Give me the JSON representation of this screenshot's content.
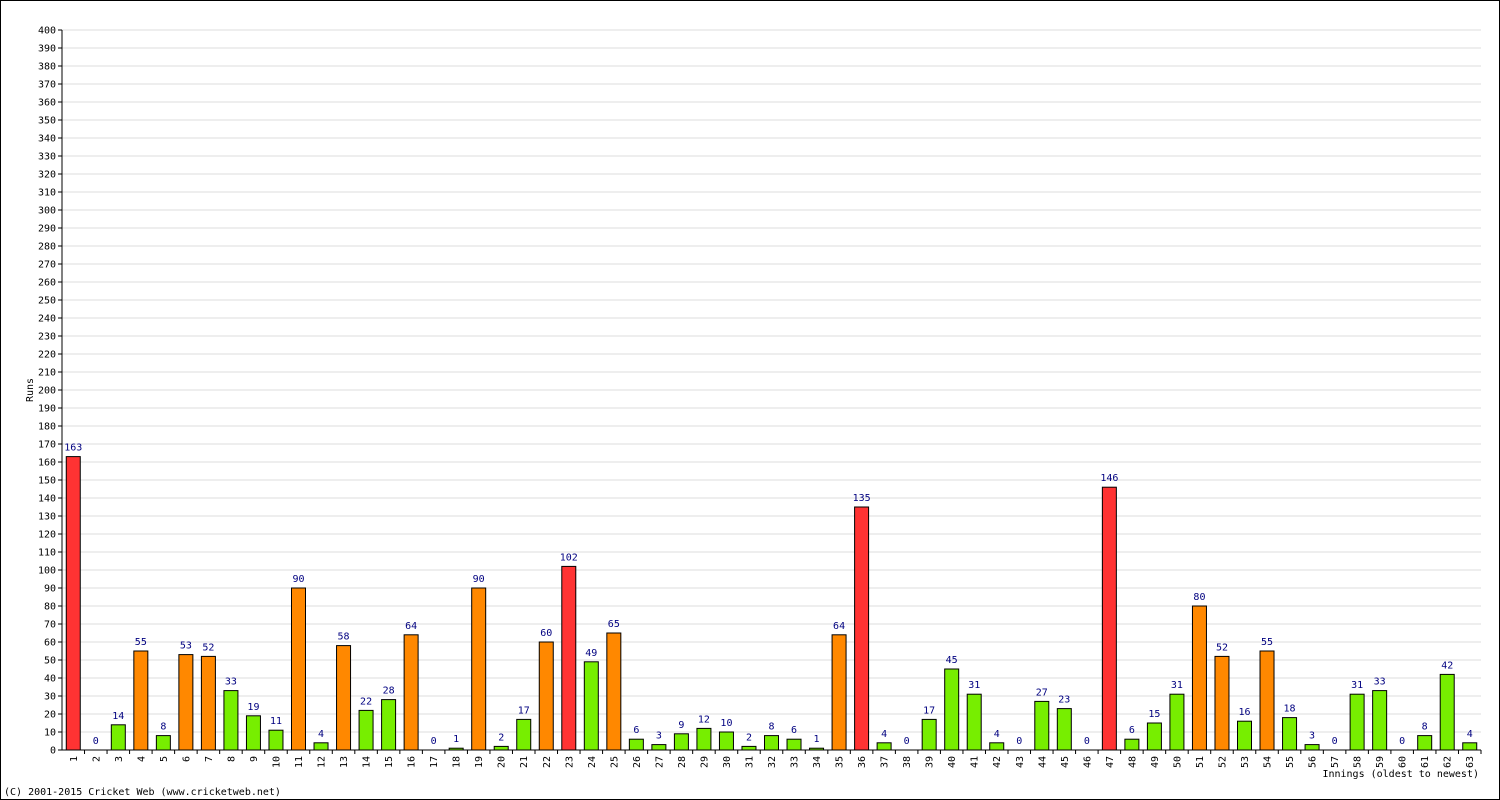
{
  "chart_data": {
    "type": "bar",
    "x_label": "Innings (oldest to newest)",
    "y_label": "Runs",
    "footer": "(C) 2001-2015 Cricket Web (www.cricketweb.net)",
    "categories": [
      "1",
      "2",
      "3",
      "4",
      "5",
      "6",
      "7",
      "8",
      "9",
      "10",
      "11",
      "12",
      "13",
      "14",
      "15",
      "16",
      "17",
      "18",
      "19",
      "20",
      "21",
      "22",
      "23",
      "24",
      "25",
      "26",
      "27",
      "28",
      "29",
      "30",
      "31",
      "32",
      "33",
      "34",
      "35",
      "36",
      "37",
      "38",
      "39",
      "40",
      "41",
      "42",
      "43",
      "44",
      "45",
      "46",
      "47",
      "48",
      "49",
      "50",
      "51",
      "52",
      "53",
      "54",
      "55",
      "56",
      "57",
      "58",
      "59",
      "60",
      "61",
      "62",
      "63"
    ],
    "values": [
      163,
      0,
      14,
      55,
      8,
      53,
      52,
      33,
      19,
      11,
      90,
      4,
      58,
      22,
      28,
      64,
      0,
      1,
      90,
      2,
      17,
      60,
      102,
      49,
      65,
      6,
      3,
      9,
      12,
      10,
      2,
      8,
      6,
      1,
      64,
      135,
      4,
      0,
      17,
      45,
      31,
      4,
      0,
      27,
      23,
      0,
      146,
      6,
      15,
      31,
      80,
      52,
      16,
      55,
      18,
      3,
      0,
      31,
      33,
      0,
      8,
      42,
      4
    ],
    "colors": [
      "#ff3333",
      "#77ee00",
      "#77ee00",
      "#ff8800",
      "#77ee00",
      "#ff8800",
      "#ff8800",
      "#77ee00",
      "#77ee00",
      "#77ee00",
      "#ff8800",
      "#77ee00",
      "#ff8800",
      "#77ee00",
      "#77ee00",
      "#ff8800",
      "#77ee00",
      "#77ee00",
      "#ff8800",
      "#77ee00",
      "#77ee00",
      "#ff8800",
      "#ff3333",
      "#77ee00",
      "#ff8800",
      "#77ee00",
      "#77ee00",
      "#77ee00",
      "#77ee00",
      "#77ee00",
      "#77ee00",
      "#77ee00",
      "#77ee00",
      "#77ee00",
      "#ff8800",
      "#ff3333",
      "#77ee00",
      "#77ee00",
      "#77ee00",
      "#77ee00",
      "#77ee00",
      "#77ee00",
      "#77ee00",
      "#77ee00",
      "#77ee00",
      "#77ee00",
      "#ff3333",
      "#77ee00",
      "#77ee00",
      "#77ee00",
      "#ff8800",
      "#ff8800",
      "#77ee00",
      "#ff8800",
      "#77ee00",
      "#77ee00",
      "#77ee00",
      "#77ee00",
      "#77ee00",
      "#77ee00",
      "#77ee00",
      "#77ee00",
      "#77ee00"
    ],
    "ylim": [
      0,
      400
    ],
    "yticks": [
      0,
      10,
      20,
      30,
      40,
      50,
      60,
      70,
      80,
      90,
      100,
      110,
      120,
      130,
      140,
      150,
      160,
      170,
      180,
      190,
      200,
      210,
      220,
      230,
      240,
      250,
      260,
      270,
      280,
      290,
      300,
      310,
      320,
      330,
      340,
      350,
      360,
      370,
      380,
      390,
      400
    ],
    "grid": true
  }
}
